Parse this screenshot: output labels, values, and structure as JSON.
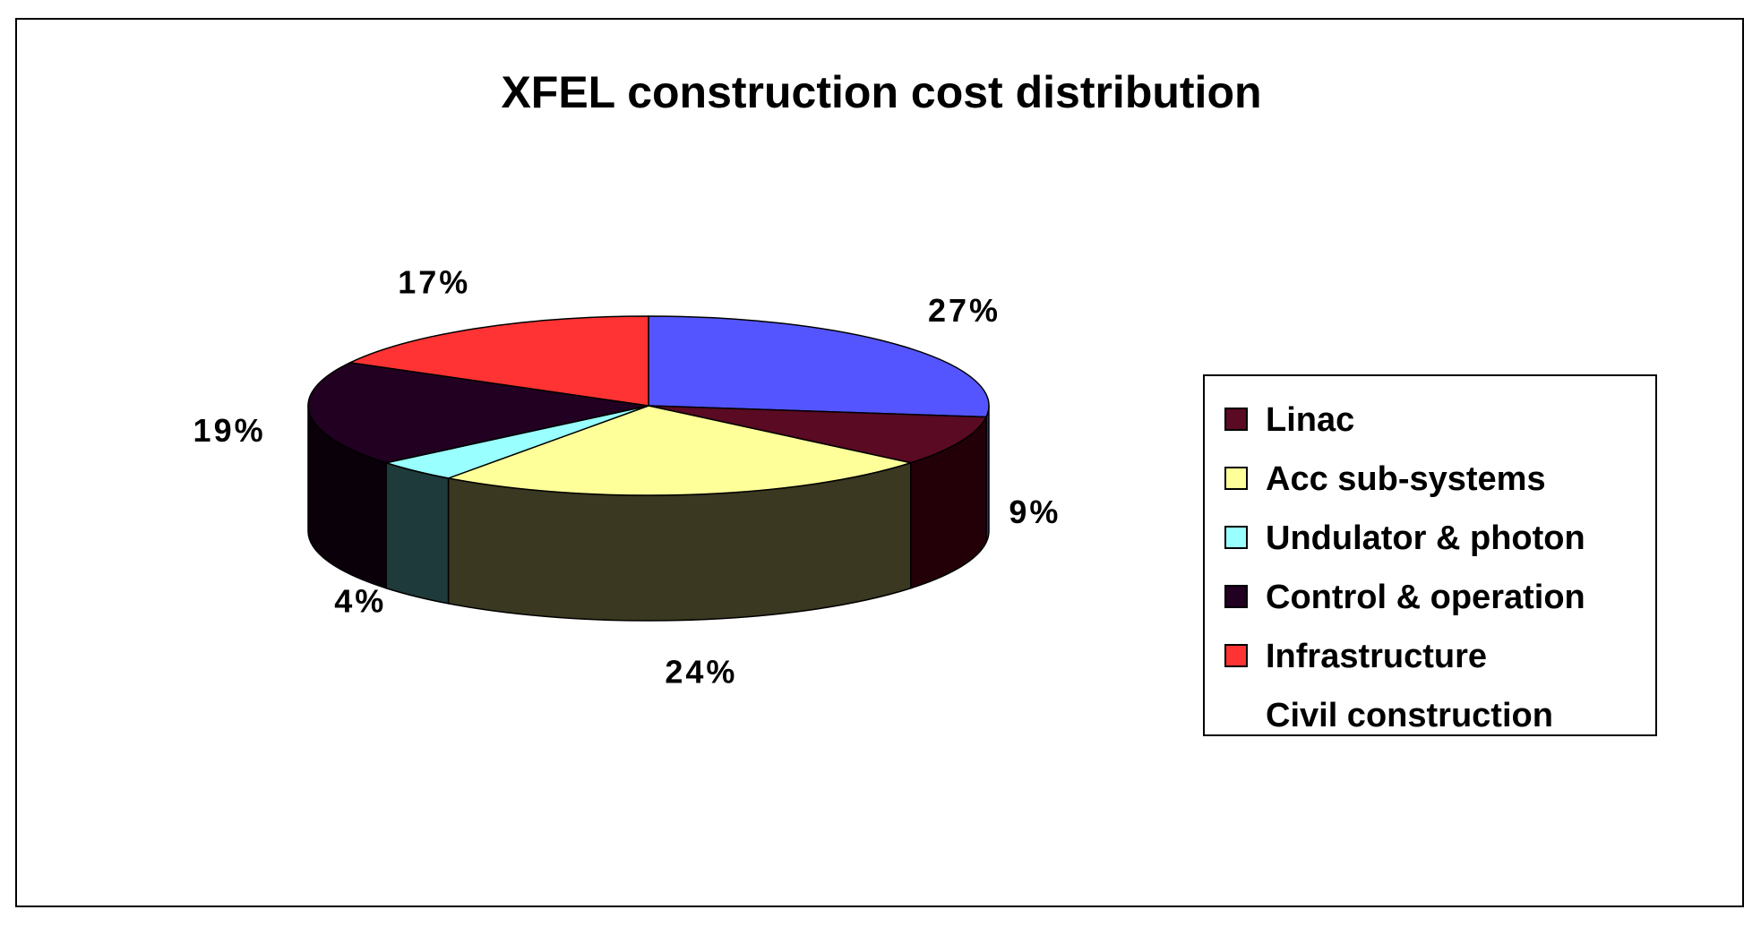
{
  "chart_data": {
    "type": "pie",
    "title": "XFEL construction cost distribution",
    "legend_position": "right",
    "three_d": true,
    "start_angle_deg": 270,
    "slices": [
      {
        "label": "Civil construction",
        "value": 27,
        "display": "27%",
        "color": "#5555ff",
        "side_color": "#2a2a80",
        "legend_marker": false
      },
      {
        "label": "Linac",
        "value": 9,
        "display": "9%",
        "color": "#5a0a22",
        "side_color": "#230008",
        "legend_marker": true
      },
      {
        "label": "Acc sub-systems",
        "value": 24,
        "display": "24%",
        "color": "#ffff99",
        "side_color": "#3a3820",
        "legend_marker": true
      },
      {
        "label": "Undulator & photon",
        "value": 4,
        "display": "4%",
        "color": "#99ffff",
        "side_color": "#1f3a3a",
        "legend_marker": true
      },
      {
        "label": "Control & operation",
        "value": 19,
        "display": "19%",
        "color": "#210021",
        "side_color": "#0a000a",
        "legend_marker": true
      },
      {
        "label": "Infrastructure",
        "value": 17,
        "display": "17%",
        "color": "#ff3333",
        "side_color": "#800000",
        "legend_marker": true
      }
    ],
    "legend_order": [
      "Linac",
      "Acc sub-systems",
      "Undulator & photon",
      "Control & operation",
      "Infrastructure",
      "Civil construction"
    ]
  }
}
